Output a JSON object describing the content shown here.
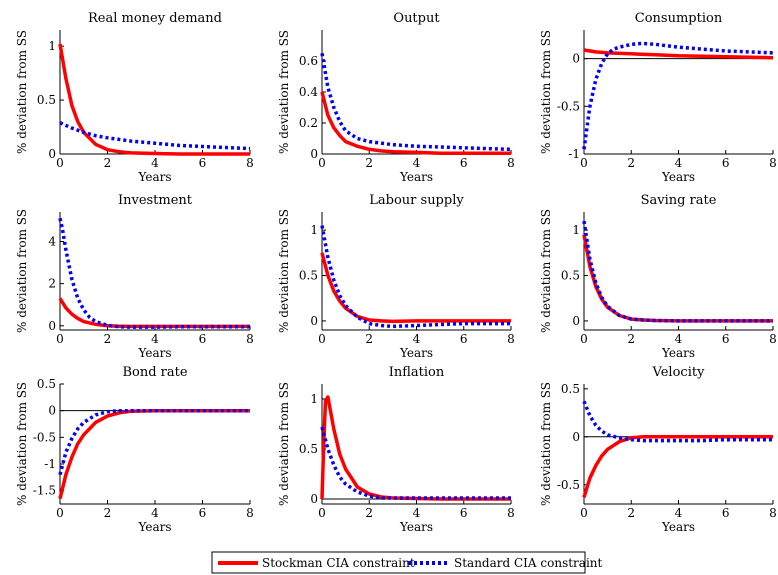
{
  "legend": {
    "placement": "bottom-center",
    "entries": [
      {
        "label": "Stockman CIA constraint",
        "color": "#ff0000",
        "style": "solid"
      },
      {
        "label": "Standard CIA constraint",
        "color": "#0000ff",
        "style": "dotted"
      }
    ]
  },
  "chart_data": [
    {
      "type": "line",
      "title": "Real money demand",
      "xlabel": "Years",
      "ylabel": "% deviation from SS",
      "xlim": [
        0,
        8
      ],
      "ylim": [
        0,
        1.15
      ],
      "xticks": [
        "0",
        "2",
        "4",
        "6",
        "8"
      ],
      "yticks": [
        0,
        0.5,
        1
      ],
      "yticklabels": [
        "0",
        "0.5",
        "1"
      ],
      "zeroline": false,
      "series": [
        {
          "name": "Stockman CIA constraint",
          "x": [
            0,
            0.25,
            0.5,
            0.75,
            1,
            1.5,
            2,
            2.5,
            3,
            4,
            5,
            6,
            7,
            8
          ],
          "y": [
            1.02,
            0.7,
            0.45,
            0.3,
            0.2,
            0.09,
            0.04,
            0.02,
            0.01,
            0.005,
            0,
            0,
            0,
            0
          ]
        },
        {
          "name": "Standard CIA constraint",
          "x": [
            0,
            0.5,
            1,
            1.5,
            2,
            3,
            4,
            5,
            6,
            7,
            8
          ],
          "y": [
            0.29,
            0.24,
            0.2,
            0.17,
            0.15,
            0.12,
            0.1,
            0.08,
            0.07,
            0.06,
            0.05
          ]
        }
      ]
    },
    {
      "type": "line",
      "title": "Output",
      "xlabel": "Years",
      "ylabel": "% deviation from SS",
      "xlim": [
        0,
        8
      ],
      "ylim": [
        0,
        0.8
      ],
      "xticks": [
        "0",
        "2",
        "4",
        "6",
        "8"
      ],
      "yticks": [
        0,
        0.2,
        0.4,
        0.6
      ],
      "yticklabels": [
        "0",
        "0.2",
        "0.4",
        "0.6"
      ],
      "zeroline": false,
      "series": [
        {
          "name": "Stockman CIA constraint",
          "x": [
            0,
            0.25,
            0.5,
            0.75,
            1,
            1.5,
            2,
            2.5,
            3,
            4,
            5,
            6,
            8
          ],
          "y": [
            0.4,
            0.25,
            0.17,
            0.12,
            0.08,
            0.05,
            0.03,
            0.02,
            0.015,
            0.01,
            0.005,
            0.005,
            0.005
          ]
        },
        {
          "name": "Standard CIA constraint",
          "x": [
            0,
            0.25,
            0.5,
            0.75,
            1,
            1.5,
            2,
            3,
            4,
            5,
            6,
            7,
            8
          ],
          "y": [
            0.65,
            0.43,
            0.3,
            0.21,
            0.15,
            0.1,
            0.08,
            0.06,
            0.05,
            0.045,
            0.04,
            0.035,
            0.03
          ]
        }
      ]
    },
    {
      "type": "line",
      "title": "Consumption",
      "xlabel": "Years",
      "ylabel": "% deviation from SS",
      "xlim": [
        0,
        8
      ],
      "ylim": [
        -1,
        0.3
      ],
      "xticks": [
        "0",
        "2",
        "4",
        "6",
        "8"
      ],
      "yticks": [
        -1,
        -0.5,
        0
      ],
      "yticklabels": [
        "-1",
        "-0.5",
        "0"
      ],
      "zeroline": true,
      "series": [
        {
          "name": "Stockman CIA constraint",
          "x": [
            0,
            0.5,
            1,
            2,
            3,
            4,
            5,
            6,
            7,
            8
          ],
          "y": [
            0.09,
            0.07,
            0.06,
            0.05,
            0.04,
            0.03,
            0.025,
            0.02,
            0.015,
            0.01
          ]
        },
        {
          "name": "Standard CIA constraint",
          "x": [
            0,
            0.25,
            0.5,
            0.75,
            1,
            1.25,
            1.5,
            2,
            2.5,
            3,
            4,
            5,
            6,
            7,
            8
          ],
          "y": [
            -0.95,
            -0.5,
            -0.22,
            -0.05,
            0.05,
            0.1,
            0.12,
            0.15,
            0.16,
            0.15,
            0.12,
            0.1,
            0.08,
            0.07,
            0.06
          ]
        }
      ]
    },
    {
      "type": "line",
      "title": "Investment",
      "xlabel": "Years",
      "ylabel": "% deviation from SS",
      "xlim": [
        0,
        8
      ],
      "ylim": [
        -0.2,
        5.4
      ],
      "xticks": [
        "0",
        "2",
        "4",
        "6",
        "8"
      ],
      "yticks": [
        0,
        2,
        4
      ],
      "yticklabels": [
        "0",
        "2",
        "4"
      ],
      "zeroline": false,
      "series": [
        {
          "name": "Stockman CIA constraint",
          "x": [
            0,
            0.25,
            0.5,
            0.75,
            1,
            1.5,
            2,
            2.5,
            3,
            4,
            5,
            6,
            7,
            8
          ],
          "y": [
            1.3,
            0.85,
            0.55,
            0.35,
            0.2,
            0.07,
            0,
            -0.02,
            -0.03,
            -0.03,
            -0.03,
            -0.03,
            -0.03,
            -0.03
          ]
        },
        {
          "name": "Standard CIA constraint",
          "x": [
            0,
            0.1,
            0.25,
            0.5,
            0.75,
            1,
            1.25,
            1.5,
            2,
            2.5,
            3,
            4,
            5,
            6,
            7,
            8
          ],
          "y": [
            5.1,
            4.6,
            3.6,
            2.2,
            1.3,
            0.75,
            0.4,
            0.2,
            0.02,
            -0.05,
            -0.06,
            -0.06,
            -0.05,
            -0.05,
            -0.05,
            -0.05
          ]
        }
      ]
    },
    {
      "type": "line",
      "title": "Labour supply",
      "xlabel": "Years",
      "ylabel": "% deviation from SS",
      "xlim": [
        0,
        8
      ],
      "ylim": [
        -0.1,
        1.2
      ],
      "xticks": [
        "0",
        "2",
        "4",
        "6",
        "8"
      ],
      "yticks": [
        0,
        0.5,
        1
      ],
      "yticklabels": [
        "0",
        "0.5",
        "1"
      ],
      "zeroline": false,
      "series": [
        {
          "name": "Stockman CIA constraint",
          "x": [
            0,
            0.25,
            0.5,
            0.75,
            1,
            1.5,
            2,
            2.5,
            3,
            4,
            5,
            6,
            7,
            8
          ],
          "y": [
            0.75,
            0.5,
            0.33,
            0.22,
            0.14,
            0.05,
            0.01,
            0,
            -0.005,
            0,
            0,
            0,
            0,
            0
          ]
        },
        {
          "name": "Standard CIA constraint",
          "x": [
            0,
            0.25,
            0.5,
            0.75,
            1,
            1.5,
            2,
            2.5,
            3,
            4,
            5,
            6,
            7,
            8
          ],
          "y": [
            1.05,
            0.7,
            0.45,
            0.28,
            0.17,
            0.04,
            -0.03,
            -0.05,
            -0.06,
            -0.05,
            -0.04,
            -0.03,
            -0.03,
            -0.03
          ]
        }
      ]
    },
    {
      "type": "line",
      "title": "Saving rate",
      "xlabel": "Years",
      "ylabel": "% deviation from SS",
      "xlim": [
        0,
        8
      ],
      "ylim": [
        -0.1,
        1.2
      ],
      "xticks": [
        "0",
        "2",
        "4",
        "6",
        "8"
      ],
      "yticks": [
        0,
        0.5,
        1
      ],
      "yticklabels": [
        "0",
        "0.5",
        "1"
      ],
      "zeroline": false,
      "series": [
        {
          "name": "Stockman CIA constraint",
          "x": [
            0,
            0.25,
            0.5,
            0.75,
            1,
            1.5,
            2,
            2.5,
            3,
            4,
            5,
            6,
            7,
            8
          ],
          "y": [
            0.95,
            0.6,
            0.38,
            0.24,
            0.15,
            0.06,
            0.02,
            0.01,
            0.005,
            0,
            0,
            0,
            0,
            0
          ]
        },
        {
          "name": "Standard CIA constraint",
          "x": [
            0,
            0.25,
            0.5,
            0.75,
            1,
            1.5,
            2,
            2.5,
            3,
            4,
            5,
            6,
            7,
            8
          ],
          "y": [
            1.1,
            0.68,
            0.42,
            0.26,
            0.16,
            0.06,
            0.02,
            0.01,
            0.005,
            0,
            0,
            0,
            0,
            0
          ]
        }
      ]
    },
    {
      "type": "line",
      "title": "Bond rate",
      "xlabel": "Years",
      "ylabel": "% deviation from SS",
      "xlim": [
        0,
        8
      ],
      "ylim": [
        -1.75,
        0.5
      ],
      "xticks": [
        "0",
        "2",
        "4",
        "6",
        "8"
      ],
      "yticks": [
        -1.5,
        -1,
        -0.5,
        0,
        0.5
      ],
      "yticklabels": [
        "-1.5",
        "-1",
        "-0.5",
        "0",
        "0.5"
      ],
      "zeroline": true,
      "series": [
        {
          "name": "Stockman CIA constraint",
          "x": [
            0,
            0.25,
            0.5,
            0.75,
            1,
            1.5,
            2,
            2.5,
            3,
            4,
            5,
            6,
            7,
            8
          ],
          "y": [
            -1.65,
            -1.2,
            -0.87,
            -0.62,
            -0.45,
            -0.22,
            -0.1,
            -0.04,
            -0.01,
            0,
            0,
            0,
            0,
            0
          ]
        },
        {
          "name": "Standard CIA constraint",
          "x": [
            0,
            0.25,
            0.5,
            0.75,
            1,
            1.5,
            2,
            2.5,
            3,
            4,
            5,
            6,
            7,
            8
          ],
          "y": [
            -1.2,
            -0.78,
            -0.52,
            -0.34,
            -0.22,
            -0.08,
            -0.02,
            0,
            0,
            0,
            0,
            0,
            0,
            0
          ]
        }
      ]
    },
    {
      "type": "line",
      "title": "Inflation",
      "xlabel": "Years",
      "ylabel": "% deviation from SS",
      "xlim": [
        0,
        8
      ],
      "ylim": [
        -0.05,
        1.15
      ],
      "xticks": [
        "0",
        "2",
        "4",
        "6",
        "8"
      ],
      "yticks": [
        0,
        0.5,
        1
      ],
      "yticklabels": [
        "0",
        "0.5",
        "1"
      ],
      "zeroline": true,
      "series": [
        {
          "name": "Stockman CIA constraint",
          "x": [
            0,
            0.08,
            0.15,
            0.25,
            0.5,
            0.75,
            1,
            1.5,
            2,
            2.5,
            3,
            4,
            5,
            6,
            7,
            8
          ],
          "y": [
            0,
            0.6,
            0.98,
            1.02,
            0.7,
            0.45,
            0.3,
            0.12,
            0.05,
            0.02,
            0.01,
            0.005,
            0,
            0,
            0,
            0
          ]
        },
        {
          "name": "Standard CIA constraint",
          "x": [
            0,
            0.25,
            0.5,
            0.75,
            1,
            1.5,
            2,
            2.5,
            3,
            4,
            5,
            6,
            7,
            8
          ],
          "y": [
            0.72,
            0.5,
            0.34,
            0.22,
            0.15,
            0.07,
            0.03,
            0.01,
            0.01,
            0.01,
            0.01,
            0.01,
            0.01,
            0.01
          ]
        }
      ]
    },
    {
      "type": "line",
      "title": "Velocity",
      "xlabel": "Years",
      "ylabel": "% deviation from SS",
      "xlim": [
        0,
        8
      ],
      "ylim": [
        -0.7,
        0.55
      ],
      "xticks": [
        "0",
        "2",
        "4",
        "6",
        "8"
      ],
      "yticks": [
        -0.5,
        0,
        0.5
      ],
      "yticklabels": [
        "-0.5",
        "0",
        "0.5"
      ],
      "zeroline": true,
      "series": [
        {
          "name": "Stockman CIA constraint",
          "x": [
            0,
            0.25,
            0.5,
            0.75,
            1,
            1.5,
            2,
            2.5,
            3,
            4,
            5,
            6,
            7,
            8
          ],
          "y": [
            -0.63,
            -0.43,
            -0.3,
            -0.2,
            -0.13,
            -0.05,
            -0.01,
            0,
            0,
            0,
            0,
            0,
            0,
            0
          ]
        },
        {
          "name": "Standard CIA constraint",
          "x": [
            0,
            0.25,
            0.5,
            0.75,
            1,
            1.5,
            2,
            2.5,
            3,
            4,
            5,
            6,
            7,
            8
          ],
          "y": [
            0.37,
            0.22,
            0.12,
            0.06,
            0.02,
            -0.01,
            -0.03,
            -0.04,
            -0.04,
            -0.04,
            -0.04,
            -0.03,
            -0.03,
            -0.03
          ]
        }
      ]
    }
  ]
}
